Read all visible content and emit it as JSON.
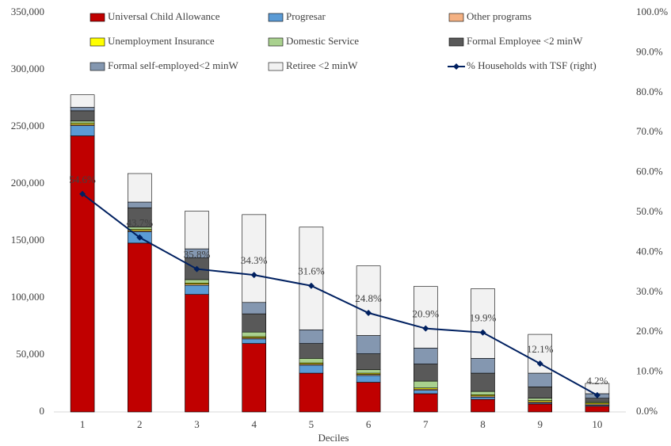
{
  "chart_data": {
    "type": "bar",
    "stacked": true,
    "x_label": "Deciles",
    "categories": [
      "1",
      "2",
      "3",
      "4",
      "5",
      "6",
      "7",
      "8",
      "9",
      "10"
    ],
    "series": [
      {
        "name": "Universal Child Allowance",
        "color": "#c00000",
        "values": [
          242000,
          148000,
          103000,
          60000,
          34000,
          26000,
          16000,
          11000,
          7000,
          5000
        ]
      },
      {
        "name": "Progresar",
        "color": "#5b9bd5",
        "values": [
          9000,
          10000,
          8000,
          4000,
          7000,
          6000,
          3000,
          2000,
          1000,
          1000
        ]
      },
      {
        "name": "Other programs",
        "color": "#f4b183",
        "values": [
          1000,
          1000,
          1000,
          1000,
          1000,
          1000,
          1000,
          1000,
          1000,
          1000
        ]
      },
      {
        "name": "Unemployment Insurance",
        "color": "#ffff00",
        "values": [
          1000,
          1000,
          1000,
          1000,
          1000,
          1000,
          1000,
          1000,
          1000,
          1000
        ]
      },
      {
        "name": "Domestic Service",
        "color": "#a9d18e",
        "values": [
          2000,
          2000,
          3000,
          4000,
          4000,
          3000,
          6000,
          3000,
          2000,
          1000
        ]
      },
      {
        "name": "Formal Employee <2 minW",
        "color": "#595959",
        "values": [
          9000,
          17000,
          19000,
          16000,
          13000,
          14000,
          15000,
          16000,
          10000,
          3000
        ]
      },
      {
        "name": "Formal self-employed<2 minW",
        "color": "#8497b0",
        "values": [
          3000,
          5000,
          8000,
          10000,
          12000,
          16000,
          14000,
          13000,
          12000,
          4000
        ]
      },
      {
        "name": "Retiree <2 minW",
        "color": "#f2f2f2",
        "values": [
          11000,
          25000,
          33000,
          77000,
          90000,
          61000,
          54000,
          61000,
          34000,
          9000
        ]
      },
      {
        "name": "% Households with TSF (right)",
        "color": "#002060",
        "type": "line",
        "axis": "y2",
        "values": [
          54.6,
          43.7,
          35.8,
          34.3,
          31.6,
          24.8,
          20.9,
          19.9,
          12.1,
          4.2
        ],
        "value_labels": [
          "54.6%",
          "43.7%",
          "35.8%",
          "34.3%",
          "31.6%",
          "24.8%",
          "20.9%",
          "19.9%",
          "12.1%",
          "4.2%"
        ]
      }
    ],
    "ylim": [
      0,
      350000
    ],
    "yticks": [
      0,
      {
        "value": 50000,
        "label": "50,000"
      },
      {
        "value": 100000,
        "label": "100,000"
      },
      {
        "value": 150000,
        "label": "150,000"
      },
      {
        "value": 200000,
        "label": "200,000"
      },
      {
        "value": 250000,
        "label": "250,000"
      },
      {
        "value": 300000,
        "label": "300,000"
      },
      {
        "value": 350000,
        "label": "350,000"
      }
    ],
    "y2lim": [
      0,
      100
    ],
    "y2ticks": [
      {
        "value": 0,
        "label": "0.0%"
      },
      {
        "value": 10,
        "label": "10.0%"
      },
      {
        "value": 20,
        "label": "20.0%"
      },
      {
        "value": 30,
        "label": "30.0%"
      },
      {
        "value": 40,
        "label": "40.0%"
      },
      {
        "value": 50,
        "label": "50.0%"
      },
      {
        "value": 60,
        "label": "60.0%"
      },
      {
        "value": 70,
        "label": "70.0%"
      },
      {
        "value": 80,
        "label": "80.0%"
      },
      {
        "value": 90,
        "label": "90.0%"
      },
      {
        "value": 100,
        "label": "100.0%"
      }
    ],
    "grid": false,
    "legend": "top"
  }
}
